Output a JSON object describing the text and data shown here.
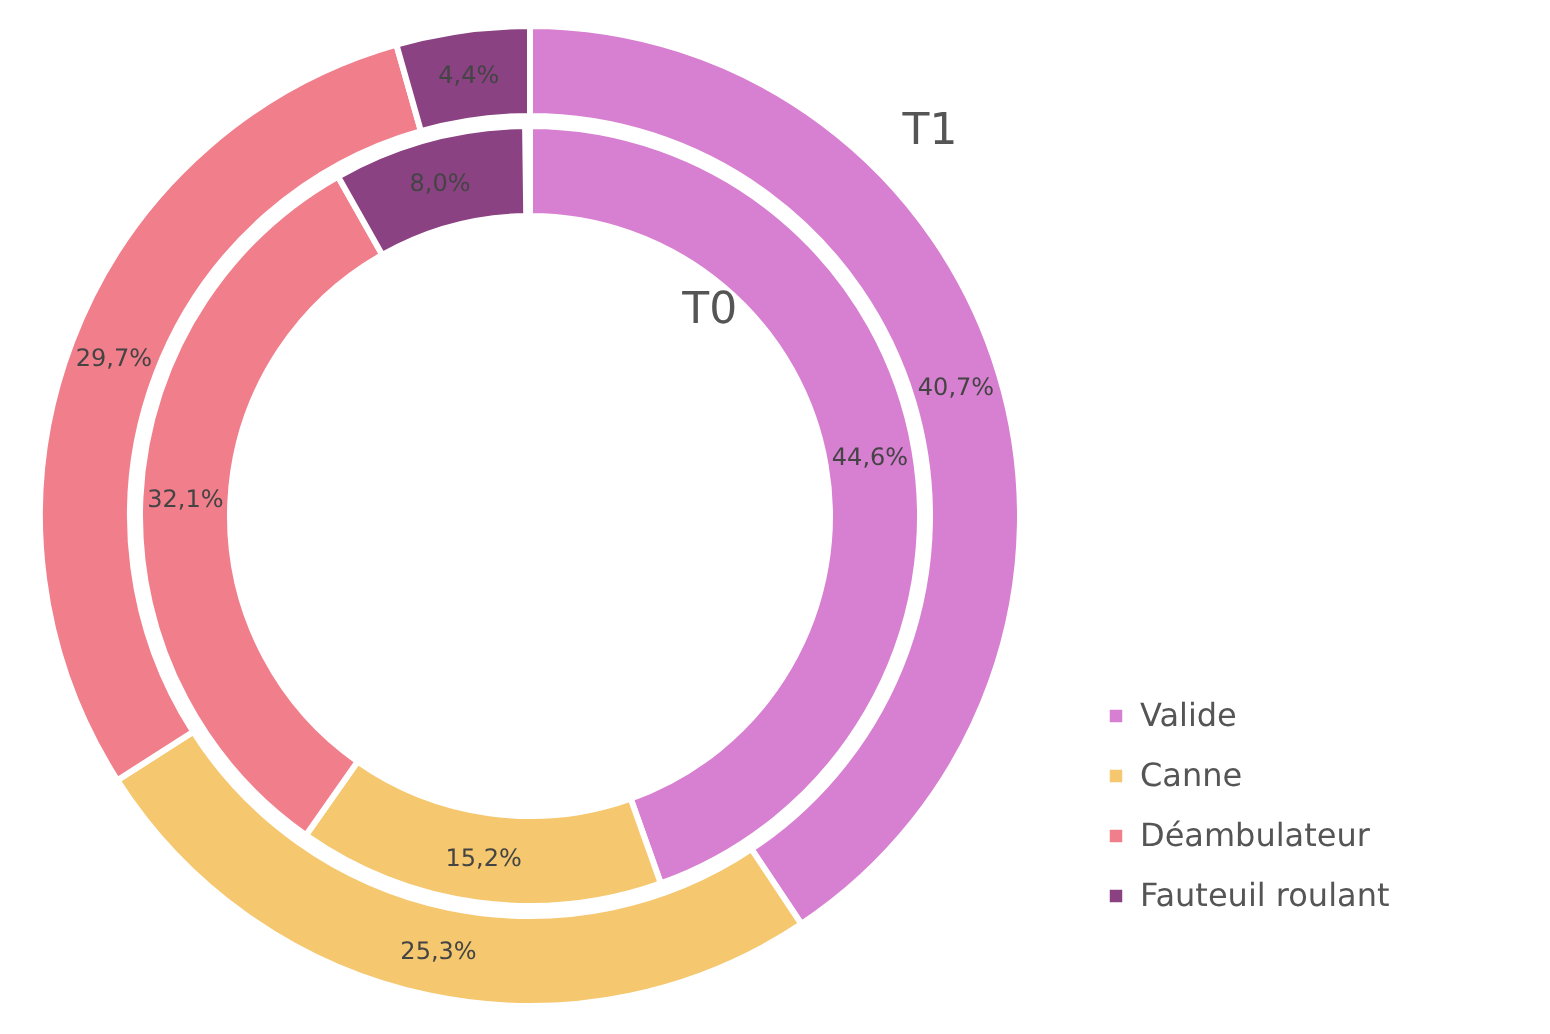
{
  "chart_data": {
    "type": "donut",
    "categories": [
      "Valide",
      "Canne",
      "Déambulateur",
      "Fauteuil roulant"
    ],
    "colors": [
      "#d77fd1",
      "#f5c76e",
      "#f07e8b",
      "#8b4282"
    ],
    "legend": "bottom right",
    "series": [
      {
        "name": "T1",
        "values": [
          40.7,
          25.3,
          29.7,
          4.4
        ],
        "value_labels": [
          "40,7%",
          "25,3%",
          "29,7%",
          "4,4%"
        ]
      },
      {
        "name": "T0",
        "values": [
          44.6,
          15.2,
          32.1,
          8.0
        ],
        "value_labels": [
          "44,6%",
          "15,2%",
          "32,1%",
          "8,0%"
        ]
      }
    ]
  }
}
